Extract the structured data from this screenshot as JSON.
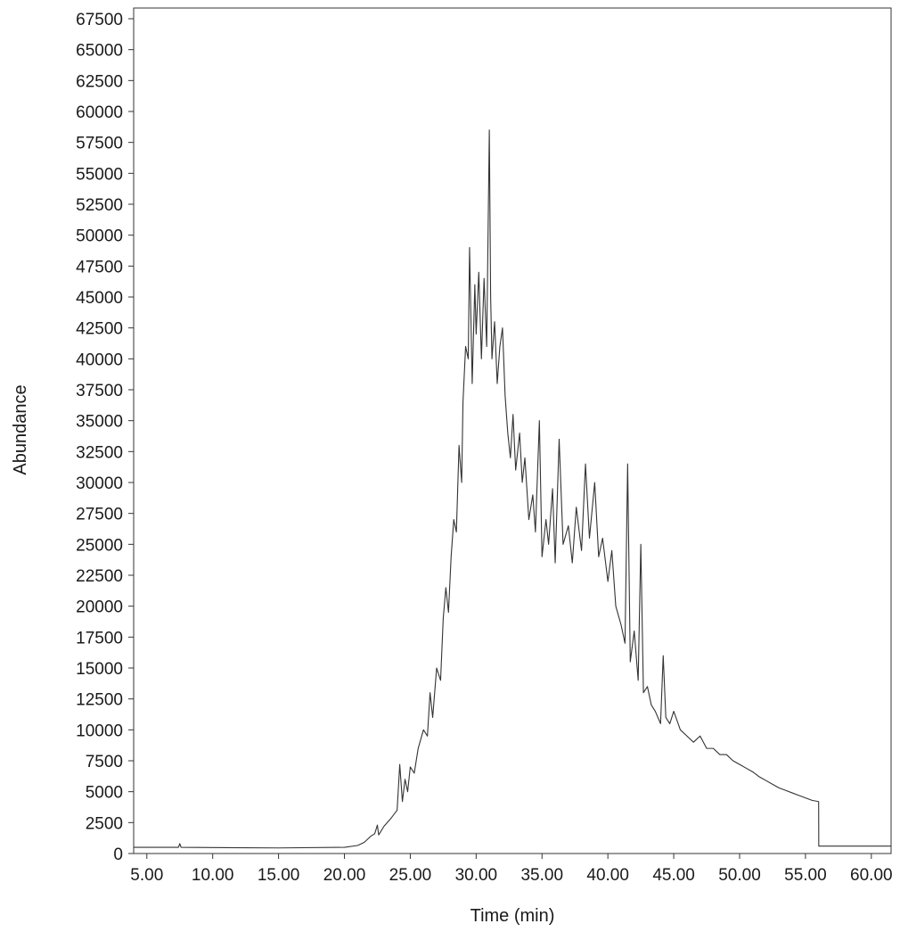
{
  "chart_data": {
    "type": "line",
    "title": "",
    "xlabel": "Time (min)",
    "ylabel": "Abundance",
    "xlim": [
      4.0,
      61.5
    ],
    "ylim": [
      0,
      68500
    ],
    "xticks": [
      5,
      10,
      15,
      20,
      25,
      30,
      35,
      40,
      45,
      50,
      55,
      60
    ],
    "xtick_labels": [
      "5.00",
      "10.00",
      "15.00",
      "20.00",
      "25.00",
      "30.00",
      "35.00",
      "40.00",
      "45.00",
      "50.00",
      "55.00",
      "60.00"
    ],
    "yticks": [
      0,
      2500,
      5000,
      7500,
      10000,
      12500,
      15000,
      17500,
      20000,
      22500,
      25000,
      27500,
      30000,
      32500,
      35000,
      37500,
      40000,
      42500,
      45000,
      47500,
      50000,
      52500,
      55000,
      57500,
      60000,
      62500,
      65000,
      67500
    ],
    "ytick_labels": [
      "0",
      "2500",
      "5000",
      "7500",
      "10000",
      "12500",
      "15000",
      "17500",
      "20000",
      "22500",
      "25000",
      "27500",
      "30000",
      "32500",
      "35000",
      "37500",
      "40000",
      "42500",
      "45000",
      "47500",
      "50000",
      "52500",
      "55000",
      "57500",
      "60000",
      "62500",
      "65000",
      "67500"
    ],
    "grid": false,
    "legend": "none",
    "line_color": "#333333",
    "series": [
      {
        "x": [
          4.0,
          7.4,
          7.5,
          7.6,
          15.0,
          20.0,
          21.0,
          21.5,
          22.0,
          22.3,
          22.5,
          22.6,
          23.0,
          23.5,
          24.0,
          24.2,
          24.4,
          24.6,
          24.8,
          25.0,
          25.3,
          25.6,
          26.0,
          26.3,
          26.5,
          26.7,
          27.0,
          27.3,
          27.5,
          27.7,
          27.9,
          28.1,
          28.3,
          28.5,
          28.7,
          28.9,
          29.0,
          29.2,
          29.4,
          29.5,
          29.7,
          29.9,
          30.0,
          30.2,
          30.4,
          30.6,
          30.8,
          31.0,
          31.1,
          31.2,
          31.4,
          31.6,
          31.8,
          32.0,
          32.2,
          32.4,
          32.6,
          32.8,
          33.0,
          33.3,
          33.5,
          33.7,
          34.0,
          34.3,
          34.5,
          34.8,
          35.0,
          35.3,
          35.5,
          35.8,
          36.0,
          36.3,
          36.6,
          37.0,
          37.3,
          37.6,
          38.0,
          38.3,
          38.6,
          39.0,
          39.3,
          39.6,
          40.0,
          40.3,
          40.6,
          41.0,
          41.3,
          41.5,
          41.7,
          42.0,
          42.3,
          42.5,
          42.7,
          43.0,
          43.3,
          43.6,
          44.0,
          44.2,
          44.4,
          44.7,
          45.0,
          45.5,
          46.0,
          46.5,
          47.0,
          47.5,
          48.0,
          48.5,
          49.0,
          49.5,
          50.0,
          50.5,
          51.0,
          51.5,
          52.0,
          52.5,
          53.0,
          53.5,
          54.0,
          54.5,
          55.0,
          55.5,
          56.0,
          56.01,
          58.0,
          60.0,
          61.5
        ],
        "y": [
          500,
          500,
          800,
          500,
          450,
          500,
          650,
          900,
          1400,
          1600,
          2300,
          1500,
          2200,
          2800,
          3500,
          7200,
          4200,
          6000,
          5000,
          7000,
          6500,
          8500,
          10000,
          9500,
          13000,
          11000,
          15000,
          14000,
          19000,
          21500,
          19500,
          24000,
          27000,
          26000,
          33000,
          30000,
          36500,
          41000,
          40000,
          49000,
          38000,
          46000,
          42000,
          47000,
          40000,
          46500,
          41000,
          58500,
          45000,
          40000,
          43000,
          38000,
          41000,
          42500,
          37000,
          34000,
          32000,
          35500,
          31000,
          34000,
          30000,
          32000,
          27000,
          29000,
          26000,
          35000,
          24000,
          27000,
          25000,
          29500,
          23500,
          33500,
          25000,
          26500,
          23500,
          28000,
          24500,
          31500,
          25500,
          30000,
          24000,
          25500,
          22000,
          24500,
          20000,
          18500,
          17000,
          31500,
          15500,
          18000,
          14000,
          25000,
          13000,
          13500,
          12000,
          11500,
          10500,
          16000,
          11000,
          10500,
          11500,
          10000,
          9500,
          9000,
          9500,
          8500,
          8500,
          8000,
          8000,
          7500,
          7200,
          6900,
          6600,
          6200,
          5900,
          5600,
          5300,
          5100,
          4900,
          4700,
          4500,
          4300,
          4200,
          600,
          600,
          600,
          600
        ]
      }
    ]
  }
}
